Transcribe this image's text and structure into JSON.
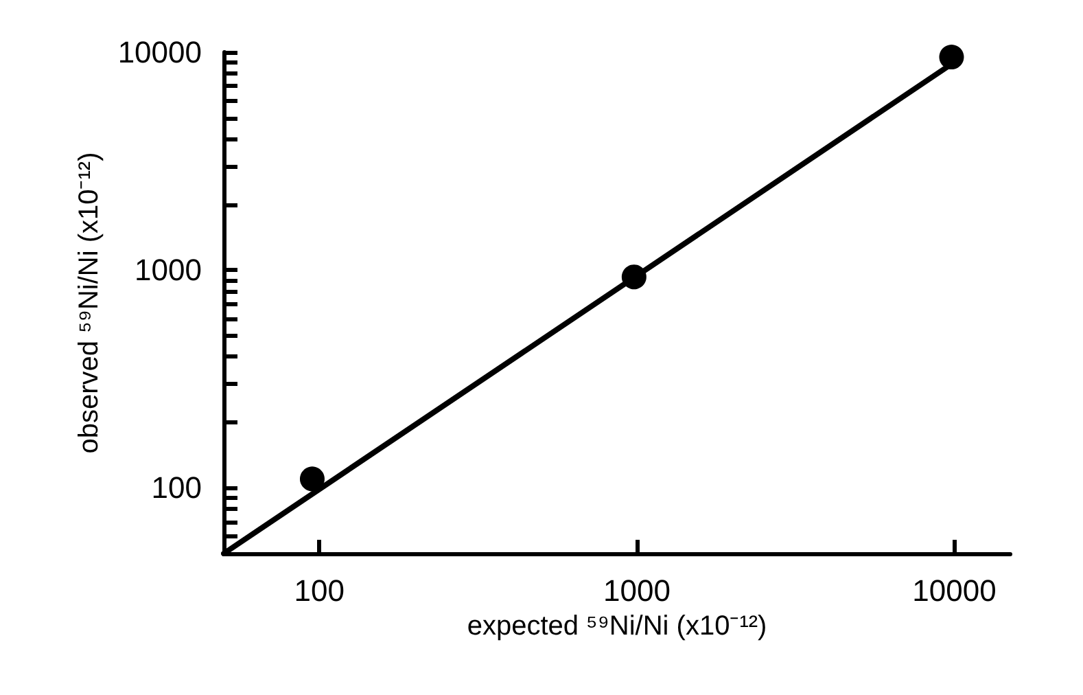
{
  "chart_data": {
    "type": "scatter",
    "xlabel": "expected ⁵⁹Ni/Ni (x10⁻¹²)",
    "ylabel": "observed ⁵⁹Ni/Ni (x10⁻¹²)",
    "log": "xy",
    "grid": false,
    "marker": "circle",
    "xlim": [
      50,
      15000
    ],
    "ylim": [
      50,
      10000
    ],
    "xticks": [
      100,
      1000,
      10000
    ],
    "yticks": [
      {
        "value": 60,
        "label": null
      },
      {
        "value": 70,
        "label": null
      },
      {
        "value": 80,
        "label": null
      },
      {
        "value": 90,
        "label": null
      },
      100,
      {
        "value": 200,
        "label": null
      },
      {
        "value": 300,
        "label": null
      },
      {
        "value": 400,
        "label": null
      },
      {
        "value": 500,
        "label": null
      },
      {
        "value": 600,
        "label": null
      },
      {
        "value": 700,
        "label": null
      },
      {
        "value": 800,
        "label": null
      },
      {
        "value": 900,
        "label": null
      },
      1000,
      {
        "value": 2000,
        "label": null
      },
      {
        "value": 3000,
        "label": null
      },
      {
        "value": 4000,
        "label": null
      },
      {
        "value": 5000,
        "label": null
      },
      {
        "value": 6000,
        "label": null
      },
      {
        "value": 7000,
        "label": null
      },
      {
        "value": 8000,
        "label": null
      },
      {
        "value": 9000,
        "label": null
      },
      10000
    ],
    "series": [
      {
        "color": "#000000",
        "x": [
          95,
          980,
          9800
        ],
        "values": [
          110,
          930,
          9500
        ]
      },
      {
        "type": "line",
        "color": "#000000",
        "marker": "none",
        "line_style": "solid",
        "x": [
          50,
          10000
        ],
        "values": [
          50,
          9000
        ]
      }
    ]
  }
}
